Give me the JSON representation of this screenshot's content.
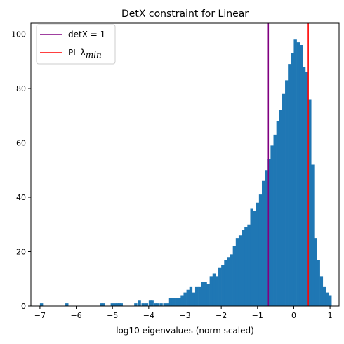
{
  "chart_data": {
    "type": "bar",
    "title": "DetX constraint for Linear",
    "xlabel": "log10 eigenvalues (norm scaled)",
    "ylabel": "",
    "xlim": [
      -7.25,
      1.25
    ],
    "ylim": [
      0,
      104
    ],
    "xticks": [
      -7,
      -6,
      -5,
      -4,
      -3,
      -2,
      -1,
      0,
      1
    ],
    "xtick_labels": [
      "−7",
      "−6",
      "−5",
      "−4",
      "−3",
      "−2",
      "−1",
      "0",
      "1"
    ],
    "yticks": [
      0,
      20,
      40,
      60,
      80,
      100
    ],
    "ytick_labels": [
      "0",
      "20",
      "40",
      "60",
      "80",
      "100"
    ],
    "grid": false,
    "legend_position": "top-left",
    "bar_color": "#1f77b4",
    "histogram": {
      "bin_width": 0.08,
      "bins": [
        [
          -7.0,
          1
        ],
        [
          -6.3,
          1
        ],
        [
          -5.35,
          1
        ],
        [
          -5.3,
          1
        ],
        [
          -5.05,
          1
        ],
        [
          -4.95,
          1
        ],
        [
          -4.9,
          1
        ],
        [
          -4.85,
          1
        ],
        [
          -4.8,
          1
        ],
        [
          -4.4,
          1
        ],
        [
          -4.3,
          2
        ],
        [
          -4.2,
          1
        ],
        [
          -4.1,
          1
        ],
        [
          -4.0,
          2
        ],
        [
          -3.95,
          2
        ],
        [
          -3.85,
          1
        ],
        [
          -3.8,
          1
        ],
        [
          -3.7,
          1
        ],
        [
          -3.6,
          1
        ],
        [
          -3.52,
          1
        ],
        [
          -3.44,
          3
        ],
        [
          -3.36,
          3
        ],
        [
          -3.28,
          3
        ],
        [
          -3.2,
          3
        ],
        [
          -3.12,
          4
        ],
        [
          -3.04,
          5
        ],
        [
          -2.96,
          6
        ],
        [
          -2.88,
          7
        ],
        [
          -2.8,
          5
        ],
        [
          -2.72,
          7
        ],
        [
          -2.64,
          7
        ],
        [
          -2.56,
          9
        ],
        [
          -2.48,
          9
        ],
        [
          -2.4,
          8
        ],
        [
          -2.32,
          11
        ],
        [
          -2.24,
          12
        ],
        [
          -2.16,
          11
        ],
        [
          -2.08,
          14
        ],
        [
          -2.0,
          15
        ],
        [
          -1.92,
          17
        ],
        [
          -1.84,
          18
        ],
        [
          -1.76,
          19
        ],
        [
          -1.68,
          22
        ],
        [
          -1.6,
          25
        ],
        [
          -1.52,
          26
        ],
        [
          -1.44,
          28
        ],
        [
          -1.36,
          29
        ],
        [
          -1.28,
          30
        ],
        [
          -1.2,
          36
        ],
        [
          -1.12,
          35
        ],
        [
          -1.04,
          38
        ],
        [
          -0.96,
          41
        ],
        [
          -0.88,
          46
        ],
        [
          -0.8,
          50
        ],
        [
          -0.72,
          54
        ],
        [
          -0.64,
          59
        ],
        [
          -0.56,
          63
        ],
        [
          -0.48,
          68
        ],
        [
          -0.4,
          72
        ],
        [
          -0.32,
          78
        ],
        [
          -0.24,
          83
        ],
        [
          -0.16,
          89
        ],
        [
          -0.08,
          93
        ],
        [
          0.0,
          98
        ],
        [
          0.08,
          97
        ],
        [
          0.16,
          96
        ],
        [
          0.24,
          88
        ],
        [
          0.32,
          86
        ],
        [
          0.4,
          76
        ],
        [
          0.48,
          52
        ],
        [
          0.56,
          25
        ],
        [
          0.64,
          17
        ],
        [
          0.72,
          11
        ],
        [
          0.8,
          7
        ],
        [
          0.88,
          5
        ],
        [
          0.96,
          4
        ]
      ]
    },
    "vlines": [
      {
        "x": -0.7,
        "color": "#800080",
        "label_main": "detX = 1",
        "label_sub": ""
      },
      {
        "x": 0.4,
        "color": "#ff0000",
        "label_main": "PL λ",
        "label_sub": "min"
      }
    ]
  }
}
